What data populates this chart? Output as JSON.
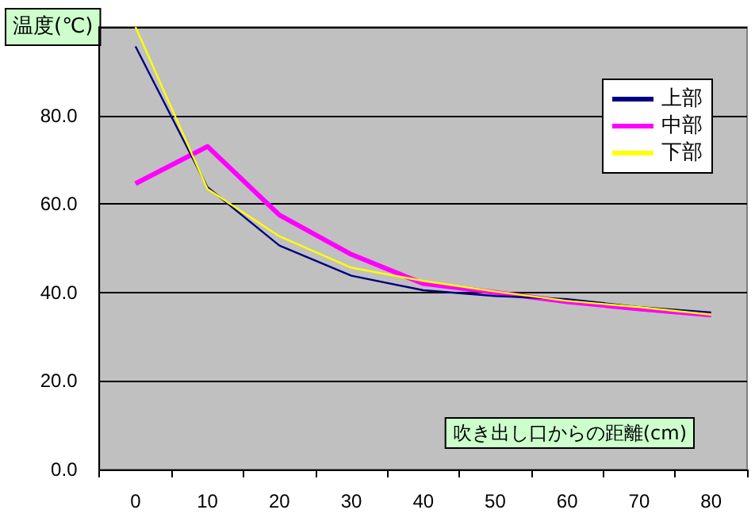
{
  "chart_data": {
    "type": "line",
    "ylabel": "温度(℃)",
    "xlabel": "吹き出し口からの距離(cm)",
    "categories": [
      "0",
      "10",
      "20",
      "30",
      "40",
      "50",
      "60",
      "70",
      "80"
    ],
    "series": [
      {
        "name": "上部",
        "color": "#000080",
        "values": [
          95.6,
          63.8,
          50.6,
          43.8,
          40.5,
          39.2,
          38.5,
          36.7,
          35.5
        ]
      },
      {
        "name": "中部",
        "color": "#ff00ff",
        "values": [
          64.6,
          73.0,
          57.5,
          48.6,
          42.0,
          40.0,
          37.9,
          36.3,
          34.9
        ]
      },
      {
        "name": "下部",
        "color": "#ffff00",
        "values": [
          100,
          63.4,
          52.7,
          45.6,
          42.6,
          40.2,
          38.1,
          36.7,
          35.0
        ]
      }
    ],
    "ylim": [
      0,
      100
    ],
    "yticks": [
      {
        "value": 0,
        "label": "0.0"
      },
      {
        "value": 20,
        "label": "20.0"
      },
      {
        "value": 40,
        "label": "40.0"
      },
      {
        "value": 60,
        "label": "60.0"
      },
      {
        "value": 80,
        "label": "80.0"
      },
      {
        "value": 100,
        "label": null
      }
    ],
    "grid": "y",
    "legend": "top right",
    "marker": "none",
    "line_style": "solid"
  }
}
